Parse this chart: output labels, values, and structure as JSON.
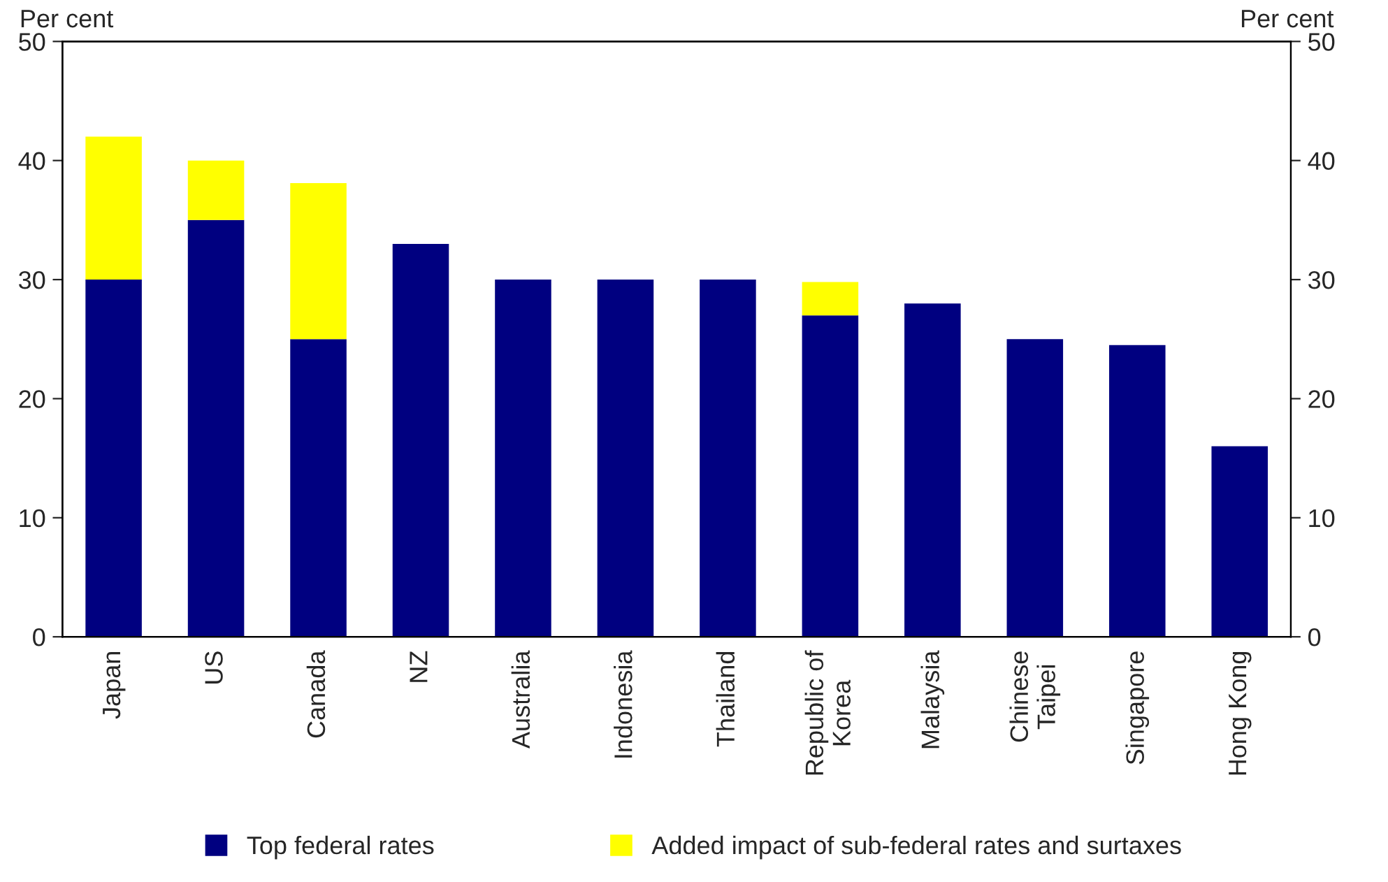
{
  "chart_data": {
    "type": "bar",
    "stacked": true,
    "ylabel": "Per cent",
    "y2label": "Per cent",
    "categories": [
      "Japan",
      "US",
      "Canada",
      "NZ",
      "Australia",
      "Indonesia",
      "Thailand",
      "Republic of\nKorea",
      "Malaysia",
      "Chinese\nTaipei",
      "Singapore",
      "Hong Kong"
    ],
    "series": [
      {
        "name": "Top federal rates",
        "color": "#000080",
        "values": [
          30,
          35,
          25,
          33,
          30,
          30,
          30,
          27,
          28,
          25,
          24.5,
          16
        ]
      },
      {
        "name": "Added impact of sub-federal rates and surtaxes",
        "color": "#ffff00",
        "values": [
          12,
          5,
          13.1,
          null,
          null,
          null,
          null,
          2.8,
          null,
          null,
          null,
          null
        ]
      }
    ],
    "ylim": [
      0,
      50
    ],
    "yticks": [
      0,
      10,
      20,
      30,
      40,
      50
    ],
    "y2lim": [
      0,
      50
    ],
    "y2ticks": [
      0,
      10,
      20,
      30,
      40,
      50
    ],
    "grid": false,
    "legend": "bottom"
  }
}
